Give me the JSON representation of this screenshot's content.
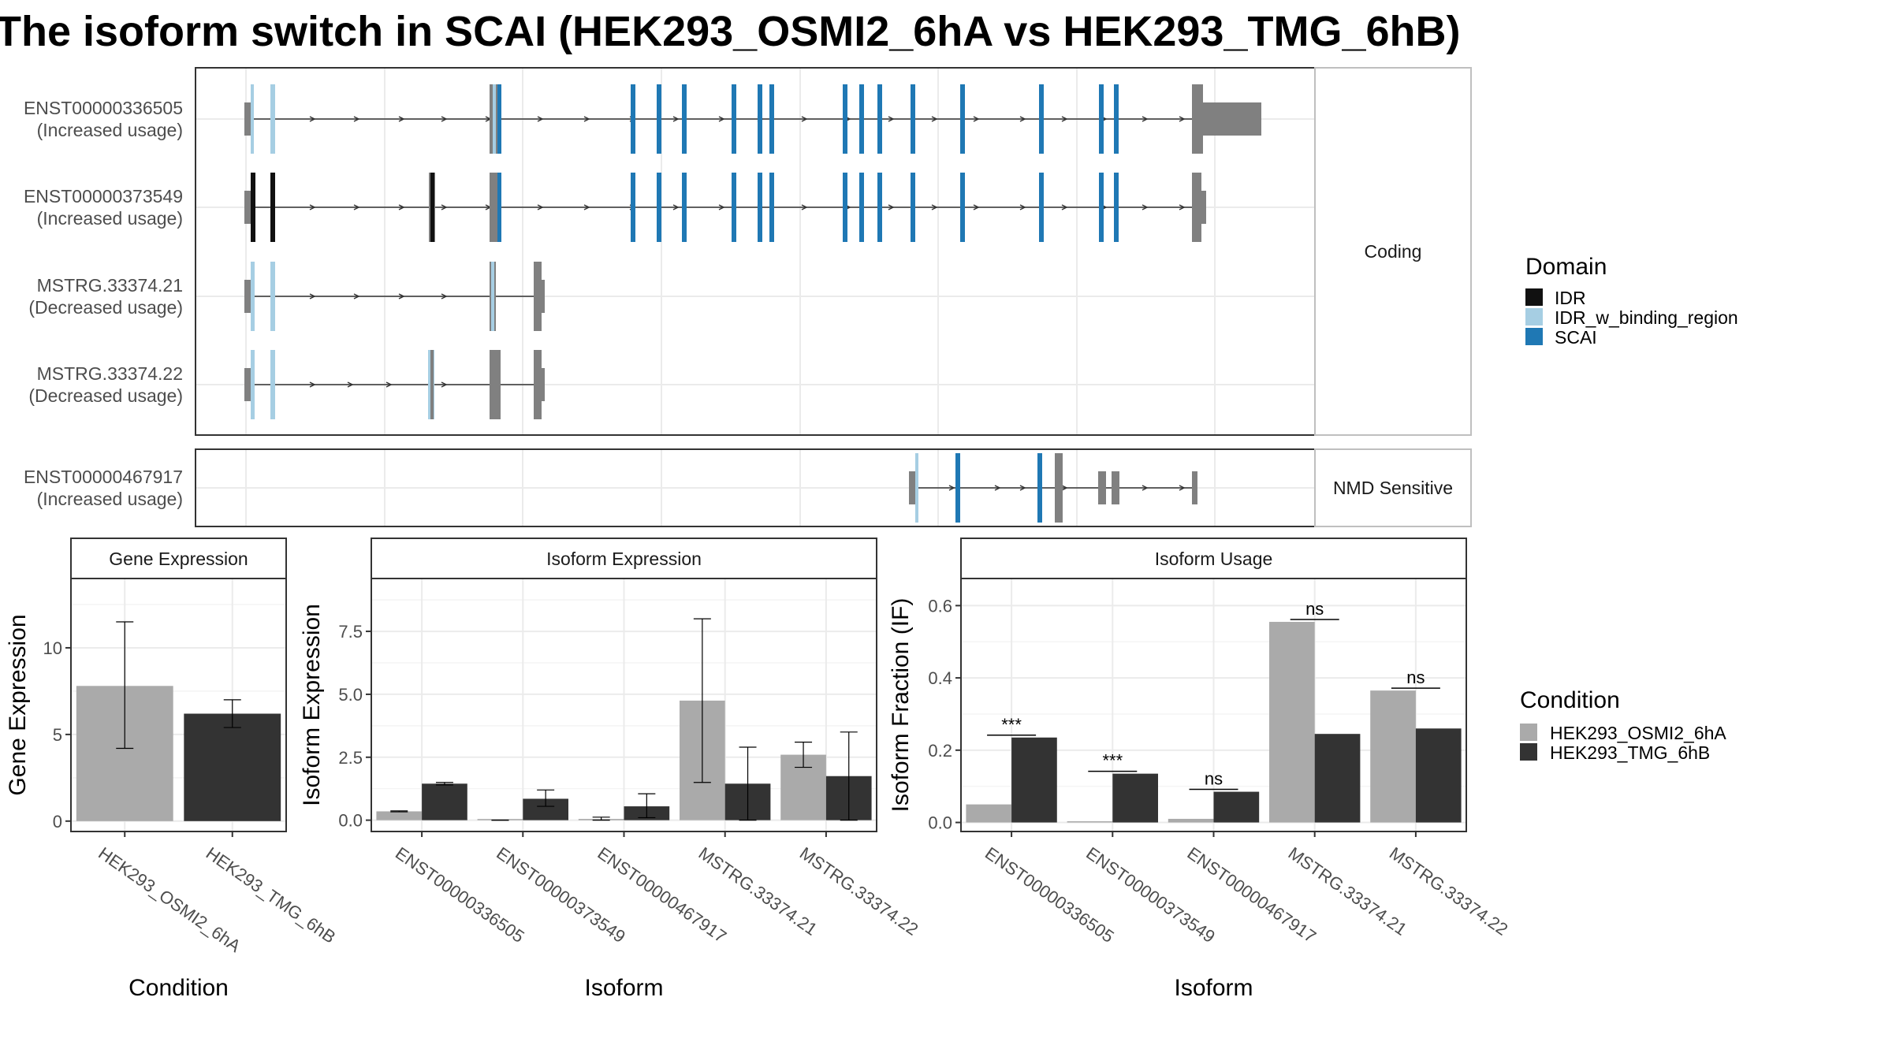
{
  "title": "The isoform switch in SCAI (HEK293_OSMI2_6hA vs HEK293_TMG_6hB)",
  "colors": {
    "IDR": "#111111",
    "IDR_w_binding_region": "#a6cee3",
    "SCAI": "#1f78b4",
    "utr": "#808080",
    "HEK293_OSMI2_6hA": "#aaaaaa",
    "HEK293_TMG_6hB": "#333333"
  },
  "chart_data": [
    {
      "type": "isoform_structure",
      "panels": [
        {
          "strip": "Coding",
          "isoforms": [
            {
              "id": "ENST00000336505",
              "usage": "(Increased usage)"
            },
            {
              "id": "ENST00000373549",
              "usage": "(Increased usage)"
            },
            {
              "id": "MSTRG.33374.21",
              "usage": "(Decreased usage)"
            },
            {
              "id": "MSTRG.33374.22",
              "usage": "(Decreased usage)"
            }
          ]
        },
        {
          "strip": "NMD Sensitive",
          "isoforms": [
            {
              "id": "ENST00000467917",
              "usage": "(Increased usage)"
            }
          ]
        }
      ],
      "legend": {
        "title": "Domain",
        "entries": [
          "IDR",
          "IDR_w_binding_region",
          "SCAI"
        ]
      }
    },
    {
      "type": "bar",
      "strip": "Gene Expression",
      "categories": [
        "HEK293_OSMI2_6hA",
        "HEK293_TMG_6hB"
      ],
      "values": [
        7.8,
        6.2
      ],
      "error_low": [
        4.2,
        5.4
      ],
      "error_high": [
        11.5,
        7.0
      ],
      "xlabel": "Condition",
      "ylabel": "Gene Expression",
      "ylim": [
        -0.6,
        14
      ],
      "yticks": [
        0,
        5,
        10
      ],
      "ytick_labels": [
        "0",
        "5",
        "10"
      ]
    },
    {
      "type": "bar",
      "strip": "Isoform Expression",
      "categories": [
        "ENST00000336505",
        "ENST00000373549",
        "ENST00000467917",
        "MSTRG.33374.21",
        "MSTRG.33374.22"
      ],
      "series": [
        {
          "name": "HEK293_OSMI2_6hA",
          "values": [
            0.35,
            0.0,
            0.05,
            4.75,
            2.6
          ],
          "error_low": [
            0.33,
            0.0,
            0.0,
            1.5,
            2.1
          ],
          "error_high": [
            0.37,
            0.0,
            0.12,
            8.0,
            3.1
          ]
        },
        {
          "name": "HEK293_TMG_6hB",
          "values": [
            1.45,
            0.85,
            0.55,
            1.45,
            1.75
          ],
          "error_low": [
            1.4,
            0.55,
            0.1,
            0.0,
            0.0
          ],
          "error_high": [
            1.5,
            1.2,
            1.05,
            2.9,
            3.5
          ]
        }
      ],
      "xlabel": "Isoform",
      "ylabel": "Isoform Expression",
      "ylim": [
        -0.45,
        9.6
      ],
      "yticks": [
        0,
        2.5,
        5,
        7.5
      ],
      "ytick_labels": [
        "0.0",
        "2.5",
        "5.0",
        "7.5"
      ]
    },
    {
      "type": "bar",
      "strip": "Isoform Usage",
      "categories": [
        "ENST00000336505",
        "ENST00000373549",
        "ENST00000467917",
        "MSTRG.33374.21",
        "MSTRG.33374.22"
      ],
      "series": [
        {
          "name": "HEK293_OSMI2_6hA",
          "values": [
            0.05,
            0.0,
            0.01,
            0.555,
            0.365
          ]
        },
        {
          "name": "HEK293_TMG_6hB",
          "values": [
            0.235,
            0.135,
            0.085,
            0.245,
            0.26
          ]
        }
      ],
      "significance": [
        "***",
        "***",
        "ns",
        "ns",
        "ns"
      ],
      "xlabel": "Isoform",
      "ylabel": "Isoform Fraction (IF)",
      "ylim": [
        -0.025,
        0.675
      ],
      "yticks": [
        0,
        0.2,
        0.4,
        0.6
      ],
      "ytick_labels": [
        "0.0",
        "0.2",
        "0.4",
        "0.6"
      ]
    }
  ],
  "condition_legend": {
    "title": "Condition",
    "entries": [
      "HEK293_OSMI2_6hA",
      "HEK293_TMG_6hB"
    ]
  }
}
